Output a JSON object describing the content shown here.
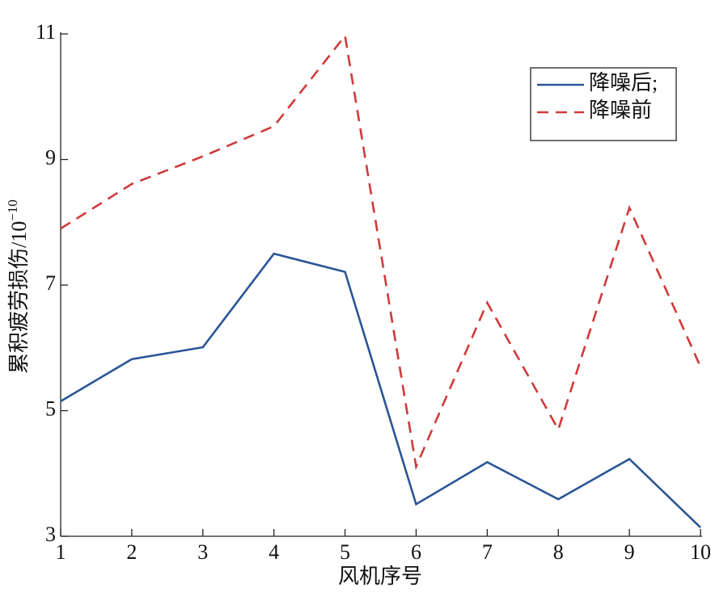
{
  "chart_data": {
    "type": "line",
    "xlabel": "风机序号",
    "ylabel": "累积疲劳损伤/10",
    "ylabel_superscript": "−10",
    "x": [
      1,
      2,
      3,
      4,
      5,
      6,
      7,
      8,
      9,
      10
    ],
    "xlim": [
      1,
      10
    ],
    "xticks": [
      1,
      2,
      3,
      4,
      5,
      6,
      7,
      8,
      9,
      10
    ],
    "ylim": [
      3,
      11
    ],
    "yticks": [
      3,
      5,
      7,
      9,
      11
    ],
    "grid": false,
    "legend": "upper-right",
    "series": [
      {
        "name": "降噪后;",
        "color": "#2a5597",
        "dash": false,
        "values": [
          5.15,
          5.82,
          6.01,
          7.5,
          7.21,
          3.51,
          4.18,
          3.59,
          4.23,
          3.14
        ]
      },
      {
        "name": "降噪前",
        "color": "#d03a3a",
        "dash": true,
        "values": [
          7.9,
          8.61,
          9.05,
          9.53,
          10.97,
          4.11,
          6.72,
          4.7,
          8.23,
          5.7
        ]
      }
    ]
  }
}
